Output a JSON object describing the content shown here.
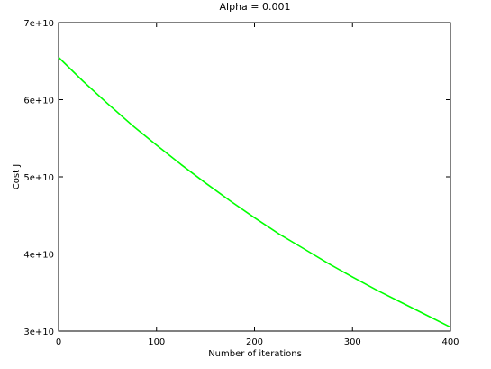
{
  "chart_data": {
    "type": "line",
    "title": "Alpha = 0.001",
    "xlabel": "Number of iterations",
    "ylabel": "Cost J",
    "xlim": [
      0,
      400
    ],
    "ylim": [
      30000000000.0,
      70000000000.0
    ],
    "grid": false,
    "legend": "none",
    "x_ticks": [
      0,
      100,
      200,
      300,
      400
    ],
    "x_tick_labels": [
      "0",
      "100",
      "200",
      "300",
      "400"
    ],
    "y_ticks": [
      30000000000.0,
      40000000000.0,
      50000000000.0,
      60000000000.0,
      70000000000.0
    ],
    "y_tick_labels": [
      "3e+10",
      "4e+10",
      "5e+10",
      "6e+10",
      "7e+10"
    ],
    "series": [
      {
        "color": "#00ff00",
        "x": [
          0,
          25,
          50,
          75,
          100,
          125,
          150,
          175,
          200,
          225,
          250,
          275,
          300,
          325,
          350,
          375,
          400
        ],
        "y": [
          65500000000.0,
          62400000000.0,
          59500000000.0,
          56700000000.0,
          54100000000.0,
          51600000000.0,
          49200000000.0,
          46900000000.0,
          44700000000.0,
          42600000000.0,
          40700000000.0,
          38800000000.0,
          37000000000.0,
          35300000000.0,
          33700000000.0,
          32100000000.0,
          30500000000.0
        ]
      }
    ]
  }
}
